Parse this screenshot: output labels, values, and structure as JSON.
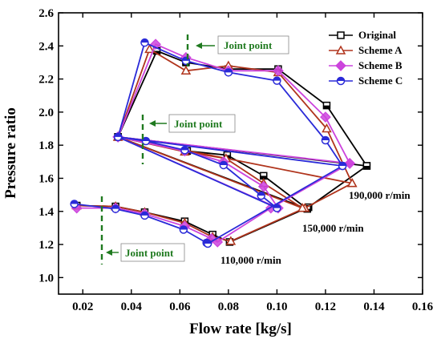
{
  "chart_data": {
    "type": "line",
    "xlabel": "Flow rate [kg/s]",
    "ylabel": "Pressure ratio",
    "xlim": [
      0.01,
      0.16
    ],
    "ylim": [
      0.9,
      2.6
    ],
    "x_ticks": [
      "0.02",
      "0.04",
      "0.06",
      "0.08",
      "0.10",
      "0.12",
      "0.14",
      "0.16"
    ],
    "y_ticks": [
      "1.0",
      "1.2",
      "1.4",
      "1.6",
      "1.8",
      "2.0",
      "2.2",
      "2.4",
      "2.6"
    ],
    "legend_position": "top-right",
    "series": [
      {
        "name": "Original",
        "color": "#000000",
        "marker": "square",
        "points": [
          [
            0.0175,
            1.435
          ],
          [
            0.0335,
            1.43
          ],
          [
            0.0455,
            1.395
          ],
          [
            0.062,
            1.34
          ],
          [
            0.0735,
            1.26
          ],
          [
            0.0805,
            1.215
          ],
          [
            0.113,
            1.425
          ],
          [
            0.137,
            1.675
          ],
          [
            0.0345,
            1.85
          ],
          [
            0.063,
            1.765
          ],
          [
            0.0795,
            1.74
          ],
          [
            0.0945,
            1.615
          ],
          [
            0.1125,
            1.415
          ],
          [
            0.0345,
            1.85
          ],
          [
            0.0505,
            2.37
          ],
          [
            0.0625,
            2.3
          ],
          [
            0.08,
            2.26
          ],
          [
            0.1005,
            2.26
          ],
          [
            0.1205,
            2.04
          ],
          [
            0.137,
            1.675
          ]
        ]
      },
      {
        "name": "Scheme A",
        "color": "#b0341c",
        "marker": "triangle",
        "points": [
          [
            0.0175,
            1.435
          ],
          [
            0.0335,
            1.43
          ],
          [
            0.0455,
            1.395
          ],
          [
            0.062,
            1.33
          ],
          [
            0.0735,
            1.245
          ],
          [
            0.081,
            1.22
          ],
          [
            0.1115,
            1.42
          ],
          [
            0.131,
            1.57
          ],
          [
            0.0345,
            1.85
          ],
          [
            0.062,
            1.76
          ],
          [
            0.079,
            1.72
          ],
          [
            0.0945,
            1.57
          ],
          [
            0.1105,
            1.42
          ],
          [
            0.0345,
            1.85
          ],
          [
            0.0475,
            2.38
          ],
          [
            0.0625,
            2.25
          ],
          [
            0.08,
            2.28
          ],
          [
            0.1005,
            2.24
          ],
          [
            0.1205,
            1.9
          ],
          [
            0.131,
            1.57
          ]
        ]
      },
      {
        "name": "Scheme B",
        "color": "#cc44dd",
        "marker": "diamond",
        "points": [
          [
            0.0175,
            1.42
          ],
          [
            0.0335,
            1.42
          ],
          [
            0.0455,
            1.385
          ],
          [
            0.062,
            1.31
          ],
          [
            0.073,
            1.235
          ],
          [
            0.0755,
            1.215
          ],
          [
            0.0975,
            1.42
          ],
          [
            0.13,
            1.69
          ],
          [
            0.0345,
            1.85
          ],
          [
            0.062,
            1.765
          ],
          [
            0.078,
            1.7
          ],
          [
            0.0945,
            1.55
          ],
          [
            0.1005,
            1.42
          ],
          [
            0.0345,
            1.85
          ],
          [
            0.05,
            2.41
          ],
          [
            0.0625,
            2.33
          ],
          [
            0.08,
            2.25
          ],
          [
            0.1005,
            2.25
          ],
          [
            0.12,
            1.97
          ],
          [
            0.13,
            1.69
          ]
        ]
      },
      {
        "name": "Scheme C",
        "color": "#2a2ad8",
        "marker": "circle",
        "points": [
          [
            0.0165,
            1.445
          ],
          [
            0.0335,
            1.415
          ],
          [
            0.0455,
            1.375
          ],
          [
            0.0615,
            1.29
          ],
          [
            0.071,
            1.21
          ],
          [
            0.0715,
            1.205
          ],
          [
            0.127,
            1.675
          ],
          [
            0.0345,
            1.85
          ],
          [
            0.046,
            1.825
          ],
          [
            0.062,
            1.77
          ],
          [
            0.078,
            1.68
          ],
          [
            0.0935,
            1.495
          ],
          [
            0.1,
            1.42
          ],
          [
            0.0345,
            1.85
          ],
          [
            0.0455,
            2.42
          ],
          [
            0.0625,
            2.31
          ],
          [
            0.08,
            2.24
          ],
          [
            0.1,
            2.19
          ],
          [
            0.12,
            1.83
          ],
          [
            0.127,
            1.675
          ]
        ]
      }
    ],
    "annotations": {
      "speed_labels": [
        "190,000 r/min",
        "150,000 r/min",
        "110,000 r/min"
      ],
      "joint_label": "Joint point"
    }
  }
}
